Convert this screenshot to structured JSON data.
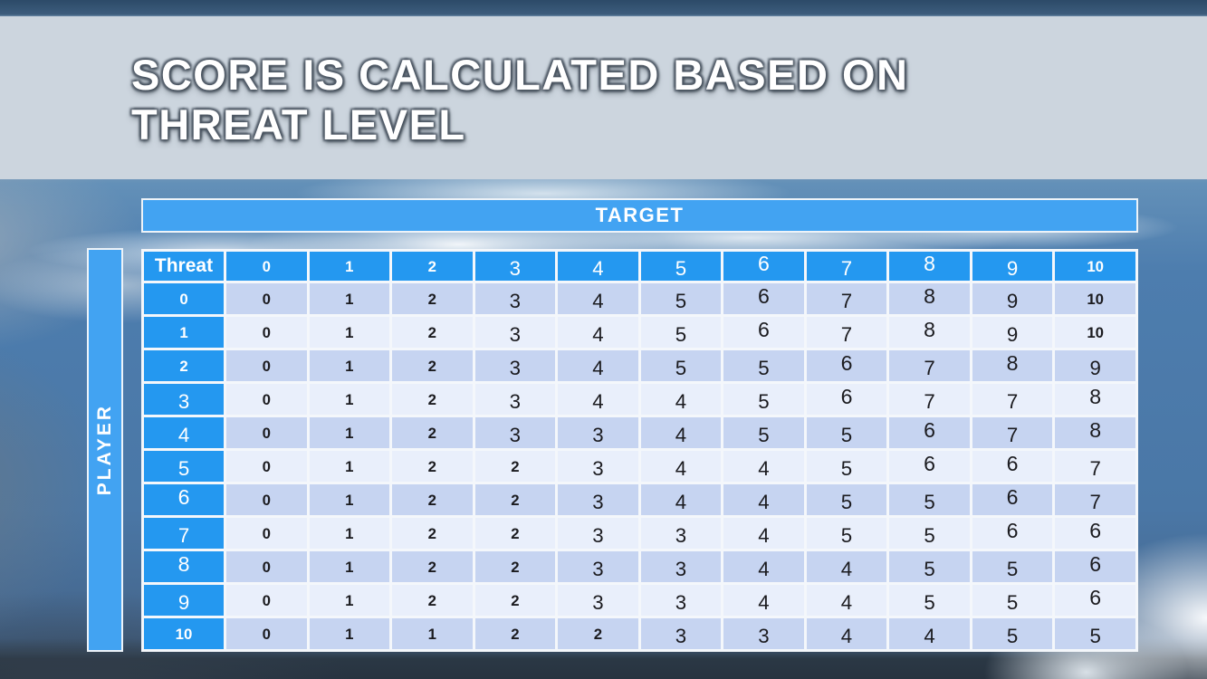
{
  "slide": {
    "title_line1": "SCORE IS CALCULATED BASED ON",
    "title_line2": "THREAT LEVEL"
  },
  "table": {
    "target_label": "TARGET",
    "player_label": "PLAYER",
    "corner_label": "Threat",
    "column_headers": [
      "0",
      "1",
      "2",
      "3",
      "4",
      "5",
      "6",
      "7",
      "8",
      "9",
      "10"
    ],
    "rows": [
      {
        "header": "0",
        "values": [
          "0",
          "1",
          "2",
          "3",
          "4",
          "5",
          "6",
          "7",
          "8",
          "9",
          "10"
        ]
      },
      {
        "header": "1",
        "values": [
          "0",
          "1",
          "2",
          "3",
          "4",
          "5",
          "6",
          "7",
          "8",
          "9",
          "10"
        ]
      },
      {
        "header": "2",
        "values": [
          "0",
          "1",
          "2",
          "3",
          "4",
          "5",
          "5",
          "6",
          "7",
          "8",
          "9"
        ]
      },
      {
        "header": "3",
        "values": [
          "0",
          "1",
          "2",
          "3",
          "4",
          "4",
          "5",
          "6",
          "7",
          "7",
          "8"
        ]
      },
      {
        "header": "4",
        "values": [
          "0",
          "1",
          "2",
          "3",
          "3",
          "4",
          "5",
          "5",
          "6",
          "7",
          "8"
        ]
      },
      {
        "header": "5",
        "values": [
          "0",
          "1",
          "2",
          "2",
          "3",
          "4",
          "4",
          "5",
          "6",
          "6",
          "7"
        ]
      },
      {
        "header": "6",
        "values": [
          "0",
          "1",
          "2",
          "2",
          "3",
          "4",
          "4",
          "5",
          "5",
          "6",
          "7"
        ]
      },
      {
        "header": "7",
        "values": [
          "0",
          "1",
          "2",
          "2",
          "3",
          "3",
          "4",
          "5",
          "5",
          "6",
          "6"
        ]
      },
      {
        "header": "8",
        "values": [
          "0",
          "1",
          "2",
          "2",
          "3",
          "3",
          "4",
          "4",
          "5",
          "5",
          "6"
        ]
      },
      {
        "header": "9",
        "values": [
          "0",
          "1",
          "2",
          "2",
          "3",
          "3",
          "4",
          "4",
          "5",
          "5",
          "6"
        ]
      },
      {
        "header": "10",
        "values": [
          "0",
          "1",
          "1",
          "2",
          "2",
          "3",
          "3",
          "4",
          "4",
          "5",
          "5"
        ]
      }
    ]
  },
  "colors": {
    "band_blue": "#42a3f2",
    "header_blue": "#2498f0",
    "row_dark": "#c6d4f1",
    "row_light": "#e9effb",
    "grid_white": "#f4f7fb",
    "title_band": "#ccd5de",
    "title_text": "#ffffff",
    "cell_text": "#1b1b1f"
  }
}
